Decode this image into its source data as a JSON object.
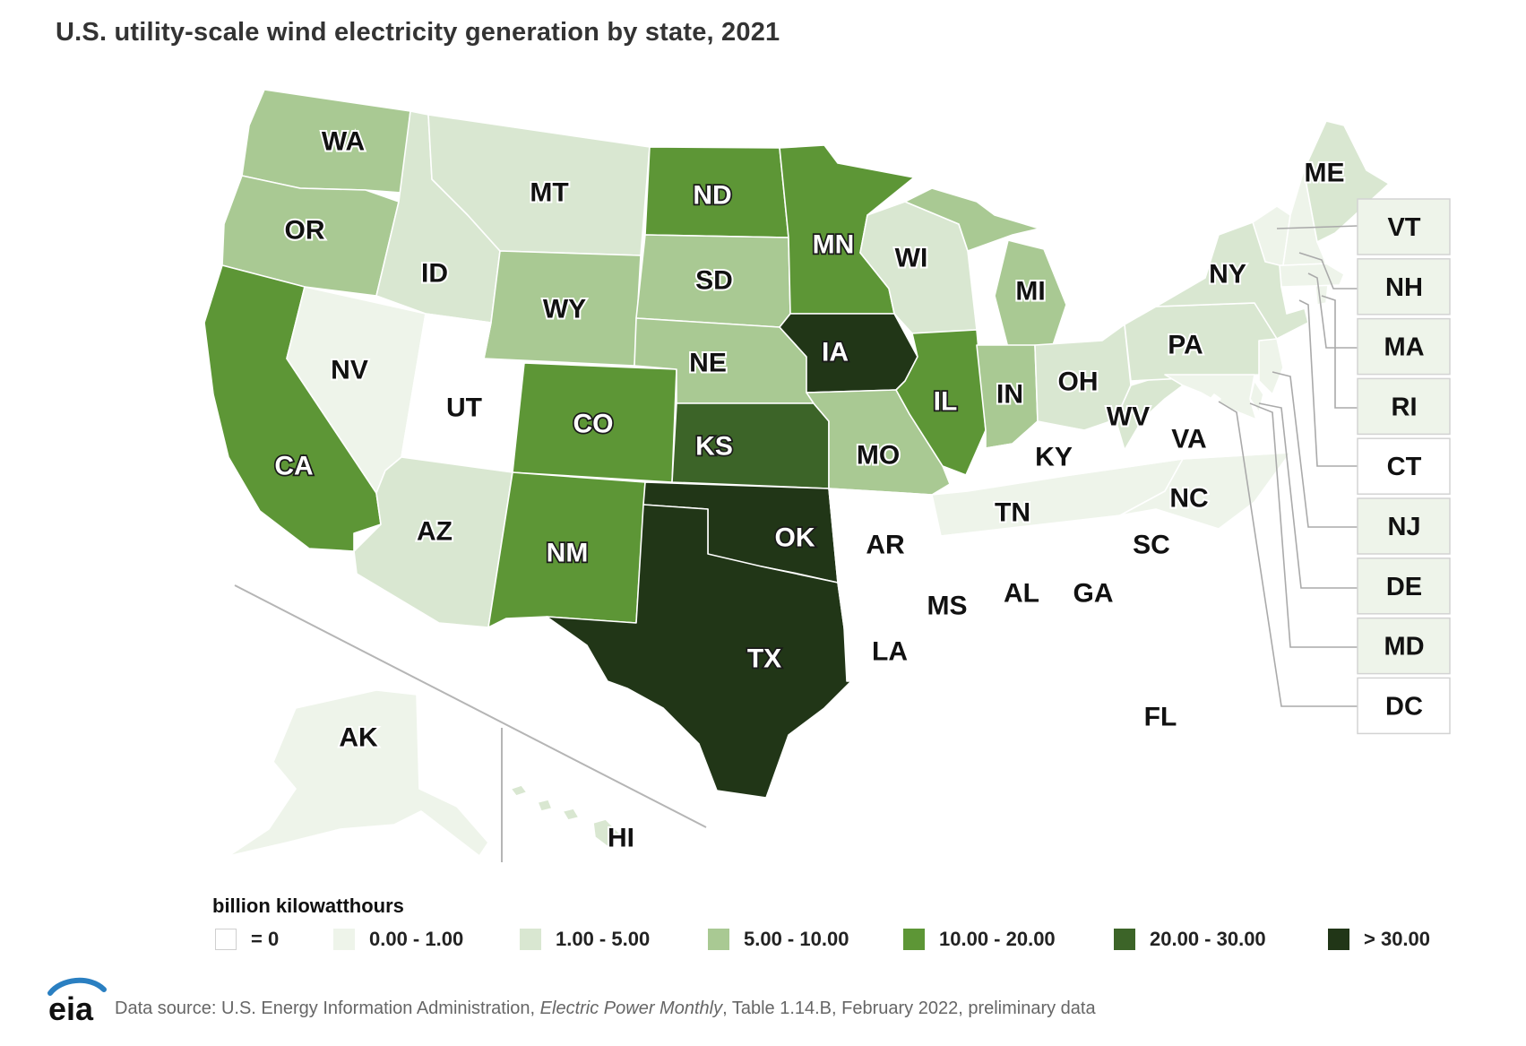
{
  "title": "U.S. utility-scale wind electricity generation by state, 2021",
  "legend": {
    "title": "billion kilowatthours",
    "bins": [
      {
        "label": "= 0",
        "color": "#ffffff"
      },
      {
        "label": "0.00 - 1.00",
        "color": "#eef4ea"
      },
      {
        "label": "1.00 - 5.00",
        "color": "#d9e7d1"
      },
      {
        "label": "5.00 - 10.00",
        "color": "#a9c993"
      },
      {
        "label": "10.00 - 20.00",
        "color": "#5d9636"
      },
      {
        "label": "20.00 - 30.00",
        "color": "#3c6428"
      },
      {
        "label": "> 30.00",
        "color": "#213617"
      }
    ]
  },
  "states": {
    "WA": 3,
    "OR": 3,
    "CA": 4,
    "NV": 1,
    "ID": 2,
    "MT": 2,
    "WY": 3,
    "UT": 0,
    "AZ": 2,
    "CO": 4,
    "NM": 4,
    "ND": 4,
    "SD": 3,
    "NE": 3,
    "KS": 5,
    "OK": 6,
    "TX": 6,
    "MN": 4,
    "IA": 6,
    "MO": 3,
    "AR": 0,
    "LA": 0,
    "WI": 2,
    "IL": 4,
    "MI": 3,
    "IN": 3,
    "OH": 2,
    "KY": 0,
    "TN": 1,
    "MS": 0,
    "AL": 0,
    "GA": 0,
    "FL": 0,
    "SC": 0,
    "NC": 1,
    "VA": 0,
    "WV": 2,
    "PA": 2,
    "NY": 2,
    "ME": 2,
    "VT": 1,
    "NH": 1,
    "MA": 1,
    "RI": 1,
    "CT": 0,
    "NJ": 1,
    "DE": 1,
    "MD": 1,
    "DC": 0,
    "AK": 1,
    "HI": 2
  },
  "small_states": [
    "VT",
    "NH",
    "MA",
    "RI",
    "CT",
    "NJ",
    "DE",
    "MD",
    "DC"
  ],
  "footer": {
    "logo_text": "eia",
    "source_prefix": "Data source: U.S. Energy Information Administration, ",
    "source_publication": "Electric Power Monthly",
    "source_suffix": ", Table 1.14.B, February 2022, preliminary data"
  }
}
